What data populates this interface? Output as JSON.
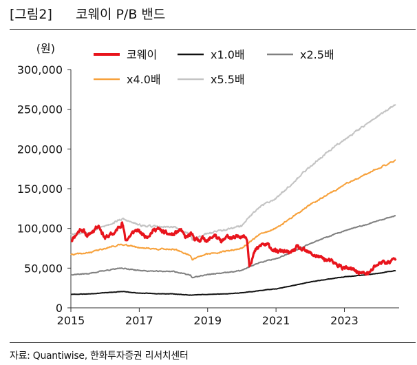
{
  "header": {
    "label": "[그림2]",
    "title": "코웨이 P/B 밴드"
  },
  "source": "자료: Quantiwise, 한화투자증권 리서치센터",
  "chart_data": {
    "type": "line",
    "title": "코웨이 P/B 밴드",
    "ylabel": "(원)",
    "xlabel": "",
    "xlim": [
      2015,
      2024.6
    ],
    "ylim": [
      0,
      300000
    ],
    "xticks": [
      2015,
      2017,
      2019,
      2021,
      2023
    ],
    "xtick_labels": [
      "2015",
      "2017",
      "2019",
      "2021",
      "2023"
    ],
    "yticks": [
      0,
      50000,
      100000,
      150000,
      200000,
      250000,
      300000
    ],
    "ytick_labels": [
      "0",
      "50,000",
      "100,000",
      "150,000",
      "200,000",
      "250,000",
      "300,000"
    ],
    "grid": false,
    "legend_position": "top",
    "series": [
      {
        "name": "코웨이",
        "color": "#e8141c",
        "width": 3.2,
        "noise": 3800,
        "seed": 11,
        "points": [
          [
            2015.0,
            85000
          ],
          [
            2015.3,
            100000
          ],
          [
            2015.5,
            90000
          ],
          [
            2015.8,
            105000
          ],
          [
            2016.0,
            88000
          ],
          [
            2016.3,
            95000
          ],
          [
            2016.5,
            108000
          ],
          [
            2016.6,
            85000
          ],
          [
            2016.9,
            98000
          ],
          [
            2017.2,
            90000
          ],
          [
            2017.5,
            100000
          ],
          [
            2017.8,
            93000
          ],
          [
            2018.0,
            92000
          ],
          [
            2018.2,
            98000
          ],
          [
            2018.35,
            88000
          ],
          [
            2018.5,
            92000
          ],
          [
            2018.7,
            85000
          ],
          [
            2018.9,
            88000
          ],
          [
            2019.0,
            84000
          ],
          [
            2019.2,
            92000
          ],
          [
            2019.4,
            82000
          ],
          [
            2019.6,
            90000
          ],
          [
            2019.8,
            87000
          ],
          [
            2020.0,
            92000
          ],
          [
            2020.15,
            88000
          ],
          [
            2020.22,
            55000
          ],
          [
            2020.4,
            72000
          ],
          [
            2020.6,
            80000
          ],
          [
            2020.8,
            78000
          ],
          [
            2021.0,
            70000
          ],
          [
            2021.2,
            72000
          ],
          [
            2021.4,
            68000
          ],
          [
            2021.6,
            76000
          ],
          [
            2021.9,
            70000
          ],
          [
            2022.2,
            65000
          ],
          [
            2022.5,
            60000
          ],
          [
            2022.8,
            54000
          ],
          [
            2023.0,
            50000
          ],
          [
            2023.3,
            47000
          ],
          [
            2023.55,
            43000
          ],
          [
            2023.75,
            44000
          ],
          [
            2023.9,
            53000
          ],
          [
            2024.1,
            58000
          ],
          [
            2024.3,
            57000
          ],
          [
            2024.5,
            62000
          ]
        ]
      },
      {
        "name": "x1.0배",
        "color": "#111111",
        "width": 2,
        "noise": 350,
        "seed": 23,
        "points": [
          [
            2015.0,
            17000
          ],
          [
            2015.5,
            17500
          ],
          [
            2016.0,
            19000
          ],
          [
            2016.5,
            20500
          ],
          [
            2017.0,
            18500
          ],
          [
            2017.5,
            18000
          ],
          [
            2018.0,
            17500
          ],
          [
            2018.5,
            16000
          ],
          [
            2019.0,
            17000
          ],
          [
            2019.5,
            17500
          ],
          [
            2020.0,
            19000
          ],
          [
            2020.5,
            21500
          ],
          [
            2021.0,
            24000
          ],
          [
            2021.5,
            28000
          ],
          [
            2022.0,
            32500
          ],
          [
            2022.5,
            36000
          ],
          [
            2023.0,
            39000
          ],
          [
            2023.5,
            41000
          ],
          [
            2024.0,
            43500
          ],
          [
            2024.5,
            47000
          ]
        ]
      },
      {
        "name": "x2.5배",
        "color": "#808080",
        "width": 2,
        "noise": 800,
        "seed": 37,
        "points": [
          [
            2015.0,
            42000
          ],
          [
            2015.5,
            43000
          ],
          [
            2016.0,
            47000
          ],
          [
            2016.5,
            50000
          ],
          [
            2017.0,
            47000
          ],
          [
            2017.5,
            46000
          ],
          [
            2018.0,
            46000
          ],
          [
            2018.5,
            41000
          ],
          [
            2018.55,
            38000
          ],
          [
            2019.0,
            42000
          ],
          [
            2019.5,
            44000
          ],
          [
            2020.0,
            47000
          ],
          [
            2020.2,
            51000
          ],
          [
            2020.5,
            57000
          ],
          [
            2021.0,
            62000
          ],
          [
            2021.5,
            71000
          ],
          [
            2022.0,
            81000
          ],
          [
            2022.5,
            89000
          ],
          [
            2023.0,
            97000
          ],
          [
            2023.5,
            103000
          ],
          [
            2024.0,
            110000
          ],
          [
            2024.5,
            116000
          ]
        ]
      },
      {
        "name": "x4.0배",
        "color": "#f7a13b",
        "width": 2,
        "noise": 1200,
        "seed": 41,
        "points": [
          [
            2015.0,
            67000
          ],
          [
            2015.5,
            69000
          ],
          [
            2016.0,
            75000
          ],
          [
            2016.5,
            80000
          ],
          [
            2017.0,
            76000
          ],
          [
            2017.5,
            74000
          ],
          [
            2018.0,
            74000
          ],
          [
            2018.5,
            66000
          ],
          [
            2018.55,
            61000
          ],
          [
            2019.0,
            68000
          ],
          [
            2019.5,
            71000
          ],
          [
            2020.0,
            75000
          ],
          [
            2020.2,
            82000
          ],
          [
            2020.5,
            92000
          ],
          [
            2021.0,
            100000
          ],
          [
            2021.5,
            115000
          ],
          [
            2022.0,
            130000
          ],
          [
            2022.5,
            142000
          ],
          [
            2023.0,
            155000
          ],
          [
            2023.5,
            165000
          ],
          [
            2024.0,
            176000
          ],
          [
            2024.5,
            186000
          ]
        ]
      },
      {
        "name": "x5.5배",
        "color": "#c4c4c4",
        "width": 2,
        "noise": 1700,
        "seed": 53,
        "points": [
          [
            2015.0,
            93000
          ],
          [
            2015.5,
            95000
          ],
          [
            2016.0,
            103000
          ],
          [
            2016.5,
            112000
          ],
          [
            2017.0,
            104000
          ],
          [
            2017.5,
            102000
          ],
          [
            2018.0,
            102000
          ],
          [
            2018.5,
            92000
          ],
          [
            2018.55,
            86000
          ],
          [
            2019.0,
            94000
          ],
          [
            2019.5,
            98000
          ],
          [
            2020.0,
            103000
          ],
          [
            2020.2,
            113000
          ],
          [
            2020.5,
            127000
          ],
          [
            2021.0,
            138000
          ],
          [
            2021.5,
            158000
          ],
          [
            2022.0,
            178000
          ],
          [
            2022.5,
            196000
          ],
          [
            2023.0,
            212000
          ],
          [
            2023.5,
            227000
          ],
          [
            2024.0,
            242000
          ],
          [
            2024.5,
            256000
          ]
        ]
      }
    ]
  }
}
